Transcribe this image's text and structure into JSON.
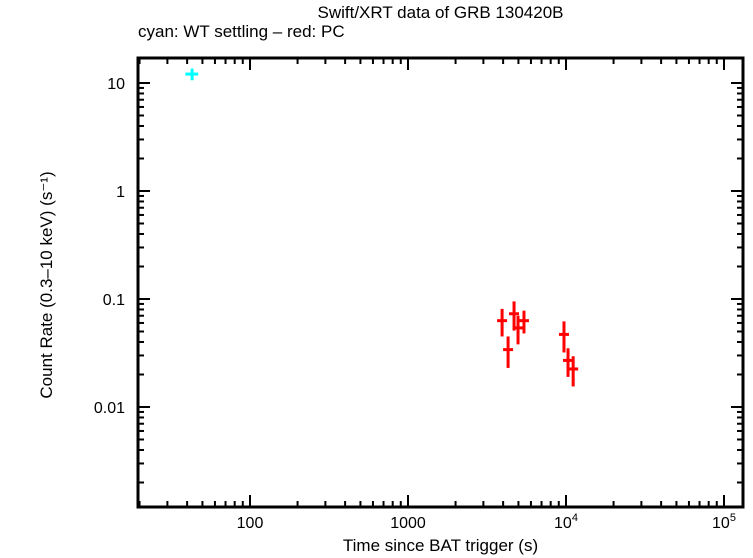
{
  "chart_data": {
    "type": "scatter",
    "title": "Swift/XRT data of GRB 130420B",
    "subtitle": "cyan: WT settling – red: PC",
    "xlabel": "Time since BAT trigger (s)",
    "ylabel": "Count Rate (0.3–10 keV) (s⁻¹)",
    "xscale": "log",
    "yscale": "log",
    "xlim": [
      20,
      120000
    ],
    "ylim": [
      0.0012,
      15
    ],
    "x_ticks": [
      "100",
      "1000",
      "10⁴",
      "10⁵"
    ],
    "y_ticks": [
      "10",
      "1",
      "0.1",
      "0.01"
    ],
    "grid": false,
    "legend": "in subtitle",
    "series": [
      {
        "name": "WT settling",
        "color": "#00ffff",
        "points": [
          {
            "x": 43,
            "y": 12.1,
            "xerr": [
              4,
              4
            ],
            "yerr": [
              1.5,
              1.5
            ]
          }
        ]
      },
      {
        "name": "PC",
        "color": "#ff0000",
        "points": [
          {
            "x": 3940,
            "y": 0.063,
            "xerr": [
              160,
              160
            ],
            "yerr": [
              0.018,
              0.018
            ]
          },
          {
            "x": 4300,
            "y": 0.034,
            "xerr": [
              300,
              300
            ],
            "yerr": [
              0.011,
              0.011
            ]
          },
          {
            "x": 4690,
            "y": 0.073,
            "xerr": [
              100,
              100
            ],
            "yerr": [
              0.022,
              0.022
            ]
          },
          {
            "x": 4970,
            "y": 0.054,
            "xerr": [
              150,
              150
            ],
            "yerr": [
              0.016,
              0.016
            ]
          },
          {
            "x": 5420,
            "y": 0.063,
            "xerr": [
              300,
              300
            ],
            "yerr": [
              0.015,
              0.015
            ]
          },
          {
            "x": 9710,
            "y": 0.047,
            "xerr": [
              250,
              250
            ],
            "yerr": [
              0.015,
              0.015
            ]
          },
          {
            "x": 10300,
            "y": 0.027,
            "xerr": [
              350,
              350
            ],
            "yerr": [
              0.008,
              0.008
            ]
          },
          {
            "x": 11100,
            "y": 0.0225,
            "xerr": [
              500,
              500
            ],
            "yerr": [
              0.007,
              0.007
            ]
          }
        ]
      }
    ]
  }
}
